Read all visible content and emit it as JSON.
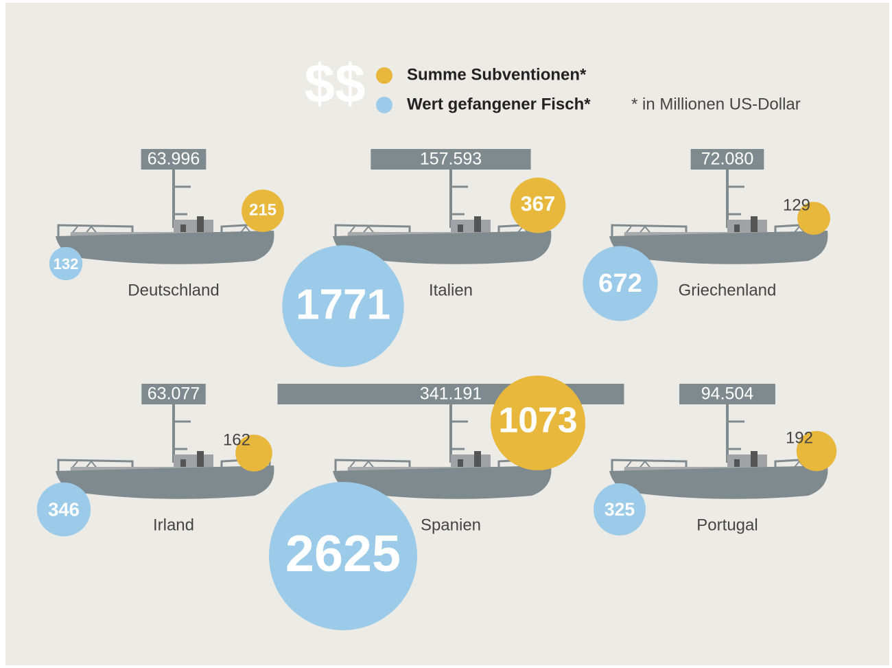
{
  "chart_data": {
    "type": "bubble",
    "symbol": "$$",
    "footnote": "* in Millionen US-Dollar",
    "categories": [
      "Deutschland",
      "Italien",
      "Griechenland",
      "Irland",
      "Spanien",
      "Portugal"
    ],
    "series": [
      {
        "name": "Summe Subventionen*",
        "color": "#e8b83c",
        "values": [
          215,
          367,
          129,
          162,
          1073,
          192
        ]
      },
      {
        "name": "Wert gefangener Fisch*",
        "color": "#9ccbe9",
        "values": [
          132,
          1771,
          672,
          346,
          2625,
          325
        ]
      }
    ],
    "bar_color": "#7f8a8f",
    "bar_values": [
      63996,
      157593,
      72080,
      63077,
      341191,
      94504
    ],
    "bar_value_labels": [
      "63.996",
      "157.593",
      "72.080",
      "63.077",
      "341.191",
      "94.504"
    ]
  }
}
